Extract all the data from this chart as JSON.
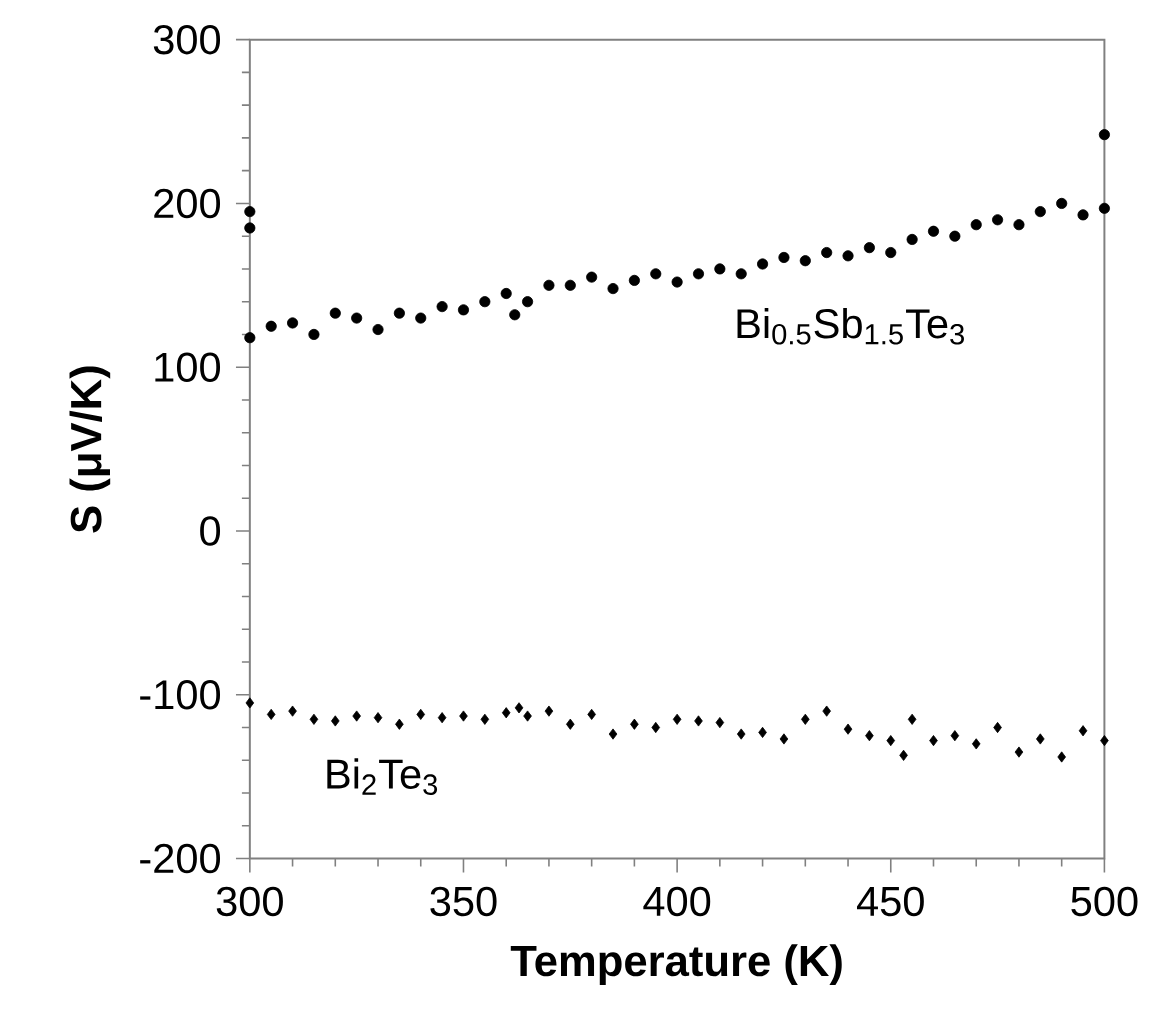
{
  "chart_data": {
    "type": "scatter",
    "xlabel": "Temperature (K)",
    "ylabel": "S (μV/K)",
    "xlim": [
      300,
      500
    ],
    "ylim": [
      -200,
      300
    ],
    "xticks": [
      300,
      350,
      400,
      450,
      500
    ],
    "yticks": [
      -200,
      -100,
      0,
      100,
      200,
      300
    ],
    "grid": false,
    "series": [
      {
        "name": "Bi$_{0.5}$Sb$_{1.5}$Te$_{3}$",
        "color": "#000000",
        "marker": "circle",
        "x": [
          300,
          300,
          300,
          305,
          310,
          315,
          320,
          325,
          330,
          335,
          340,
          345,
          350,
          355,
          360,
          362,
          365,
          370,
          375,
          380,
          385,
          390,
          395,
          400,
          405,
          410,
          415,
          420,
          425,
          430,
          435,
          440,
          445,
          450,
          455,
          460,
          465,
          470,
          475,
          480,
          485,
          490,
          495,
          500,
          500
        ],
        "values": [
          118,
          185,
          195,
          125,
          127,
          120,
          133,
          130,
          123,
          133,
          130,
          137,
          135,
          140,
          145,
          132,
          140,
          150,
          150,
          155,
          148,
          153,
          157,
          152,
          157,
          160,
          157,
          163,
          167,
          165,
          170,
          168,
          173,
          170,
          178,
          183,
          180,
          187,
          190,
          187,
          195,
          200,
          193,
          197,
          242
        ]
      },
      {
        "name": "Bi$_{2}$Te$_{3}$",
        "color": "#000000",
        "marker": "diamond",
        "x": [
          300,
          305,
          310,
          315,
          320,
          325,
          330,
          335,
          340,
          345,
          350,
          355,
          360,
          363,
          365,
          370,
          375,
          380,
          385,
          390,
          395,
          400,
          405,
          410,
          415,
          420,
          425,
          430,
          435,
          440,
          445,
          450,
          453,
          455,
          460,
          465,
          470,
          475,
          480,
          485,
          490,
          495,
          500
        ],
        "values": [
          -105,
          -112,
          -110,
          -115,
          -116,
          -113,
          -114,
          -118,
          -112,
          -114,
          -113,
          -115,
          -111,
          -108,
          -113,
          -110,
          -118,
          -112,
          -124,
          -118,
          -120,
          -115,
          -116,
          -117,
          -124,
          -123,
          -127,
          -115,
          -110,
          -121,
          -125,
          -128,
          -137,
          -115,
          -128,
          -125,
          -130,
          -120,
          -135,
          -127,
          -138,
          -122,
          -128
        ]
      }
    ]
  }
}
